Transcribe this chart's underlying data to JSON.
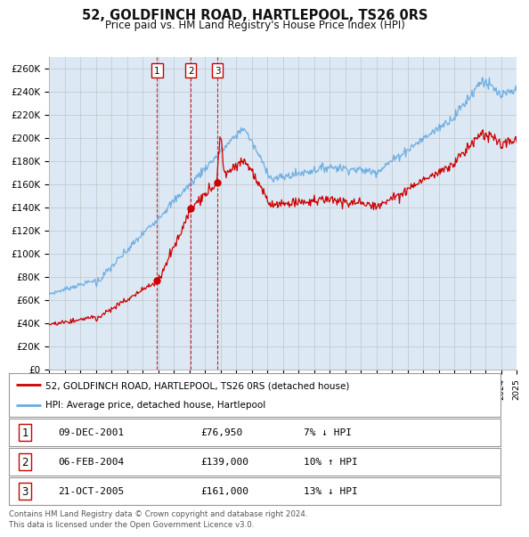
{
  "title": "52, GOLDFINCH ROAD, HARTLEPOOL, TS26 0RS",
  "subtitle": "Price paid vs. HM Land Registry's House Price Index (HPI)",
  "background_color": "#dce9f5",
  "plot_bg_color": "#dce9f5",
  "ylim": [
    0,
    270000
  ],
  "yticks": [
    0,
    20000,
    40000,
    60000,
    80000,
    100000,
    120000,
    140000,
    160000,
    180000,
    200000,
    220000,
    240000,
    260000
  ],
  "ytick_labels": [
    "£0",
    "£20K",
    "£40K",
    "£60K",
    "£80K",
    "£100K",
    "£120K",
    "£140K",
    "£160K",
    "£180K",
    "£200K",
    "£220K",
    "£240K",
    "£260K"
  ],
  "sale_dates": [
    2001.94,
    2004.09,
    2005.81
  ],
  "sale_prices": [
    76950,
    139000,
    161000
  ],
  "sale_labels": [
    "1",
    "2",
    "3"
  ],
  "legend_entry1": "52, GOLDFINCH ROAD, HARTLEPOOL, TS26 0RS (detached house)",
  "legend_entry2": "HPI: Average price, detached house, Hartlepool",
  "table_rows": [
    [
      "1",
      "09-DEC-2001",
      "£76,950",
      "7% ↓ HPI"
    ],
    [
      "2",
      "06-FEB-2004",
      "£139,000",
      "10% ↑ HPI"
    ],
    [
      "3",
      "21-OCT-2005",
      "£161,000",
      "13% ↓ HPI"
    ]
  ],
  "footer": "Contains HM Land Registry data © Crown copyright and database right 2024.\nThis data is licensed under the Open Government Licence v3.0.",
  "hpi_color": "#6aabe0",
  "price_color": "#cc0000",
  "vline_color": "#cc0000",
  "marker_color": "#cc0000",
  "grid_color": "#bbbbbb",
  "xstart": 1995,
  "xend": 2025
}
